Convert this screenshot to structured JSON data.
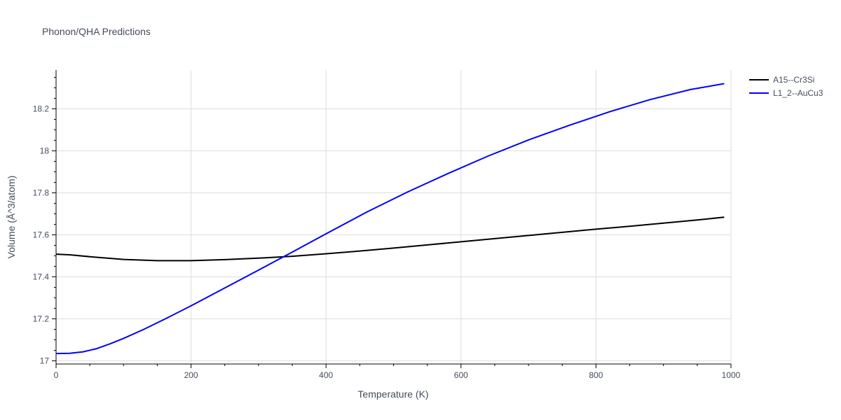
{
  "chart_data": {
    "type": "line",
    "title": "Phonon/QHA Predictions",
    "xlabel": "Temperature (K)",
    "ylabel": "Volume (Å^3/atom)",
    "xlim": [
      0,
      1000
    ],
    "ylim": [
      16.985,
      18.385
    ],
    "x_ticks": [
      0,
      200,
      400,
      600,
      800,
      1000
    ],
    "x_tick_labels": [
      "0",
      "200",
      "400",
      "600",
      "800",
      "1000"
    ],
    "y_ticks": [
      17,
      17.2,
      17.4,
      17.6,
      17.8,
      18,
      18.2
    ],
    "y_tick_labels": [
      "17",
      "17.2",
      "17.4",
      "17.6",
      "17.8",
      "18",
      "18.2"
    ],
    "grid": true,
    "legend_position": "top-right",
    "series": [
      {
        "name": "A15--Cr3Si",
        "color": "#000000",
        "x": [
          0,
          20,
          50,
          100,
          150,
          200,
          250,
          300,
          350,
          400,
          450,
          500,
          550,
          600,
          650,
          700,
          750,
          800,
          850,
          900,
          950,
          990
        ],
        "y": [
          17.508,
          17.505,
          17.496,
          17.483,
          17.477,
          17.477,
          17.482,
          17.489,
          17.498,
          17.51,
          17.523,
          17.537,
          17.552,
          17.567,
          17.582,
          17.597,
          17.612,
          17.627,
          17.641,
          17.656,
          17.671,
          17.684
        ]
      },
      {
        "name": "L1_2--AuCu3",
        "color": "#0000ff",
        "x": [
          0,
          20,
          40,
          60,
          80,
          100,
          130,
          160,
          200,
          250,
          300,
          350,
          400,
          460,
          520,
          580,
          640,
          700,
          760,
          820,
          880,
          940,
          990
        ],
        "y": [
          17.035,
          17.036,
          17.043,
          17.058,
          17.081,
          17.107,
          17.15,
          17.197,
          17.262,
          17.347,
          17.432,
          17.518,
          17.605,
          17.708,
          17.803,
          17.891,
          17.975,
          18.052,
          18.121,
          18.186,
          18.244,
          18.292,
          18.32
        ]
      }
    ]
  }
}
